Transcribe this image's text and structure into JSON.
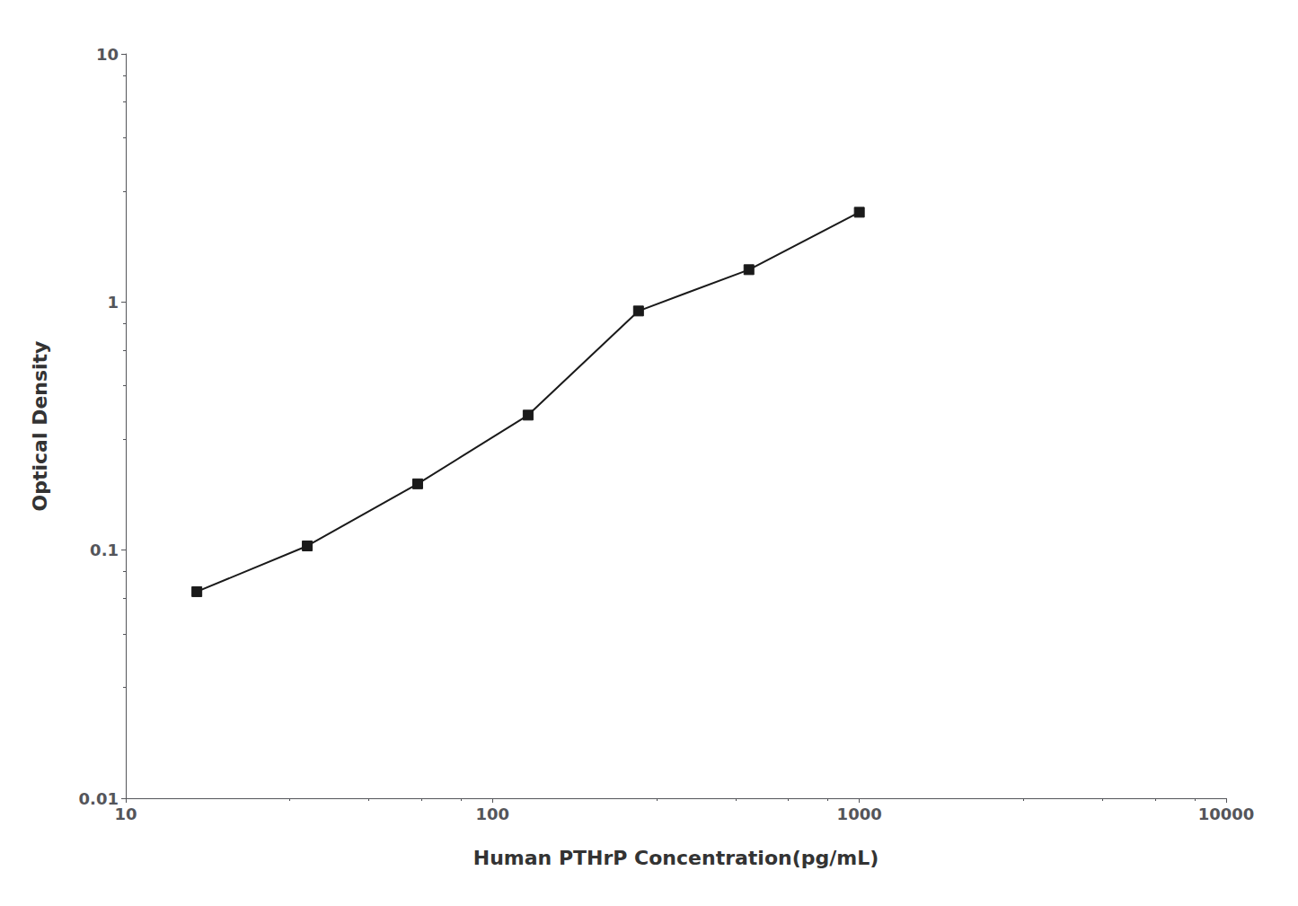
{
  "chart_data": {
    "type": "line",
    "x": [
      15.625,
      31.25,
      62.5,
      125,
      250,
      500,
      1000
    ],
    "values": [
      0.068,
      0.104,
      0.185,
      0.35,
      0.92,
      1.35,
      2.3
    ],
    "xlabel": "Human PTHrP Concentration(pg/mL)",
    "ylabel": "Optical Density",
    "xlim": [
      10,
      10000
    ],
    "ylim": [
      0.01,
      10
    ],
    "xticks": [
      10,
      100,
      1000,
      10000
    ],
    "yticks": [
      0.01,
      0.1,
      1,
      10
    ],
    "log": true,
    "grid": false,
    "color": "#1a1a1a",
    "marker": "square"
  }
}
